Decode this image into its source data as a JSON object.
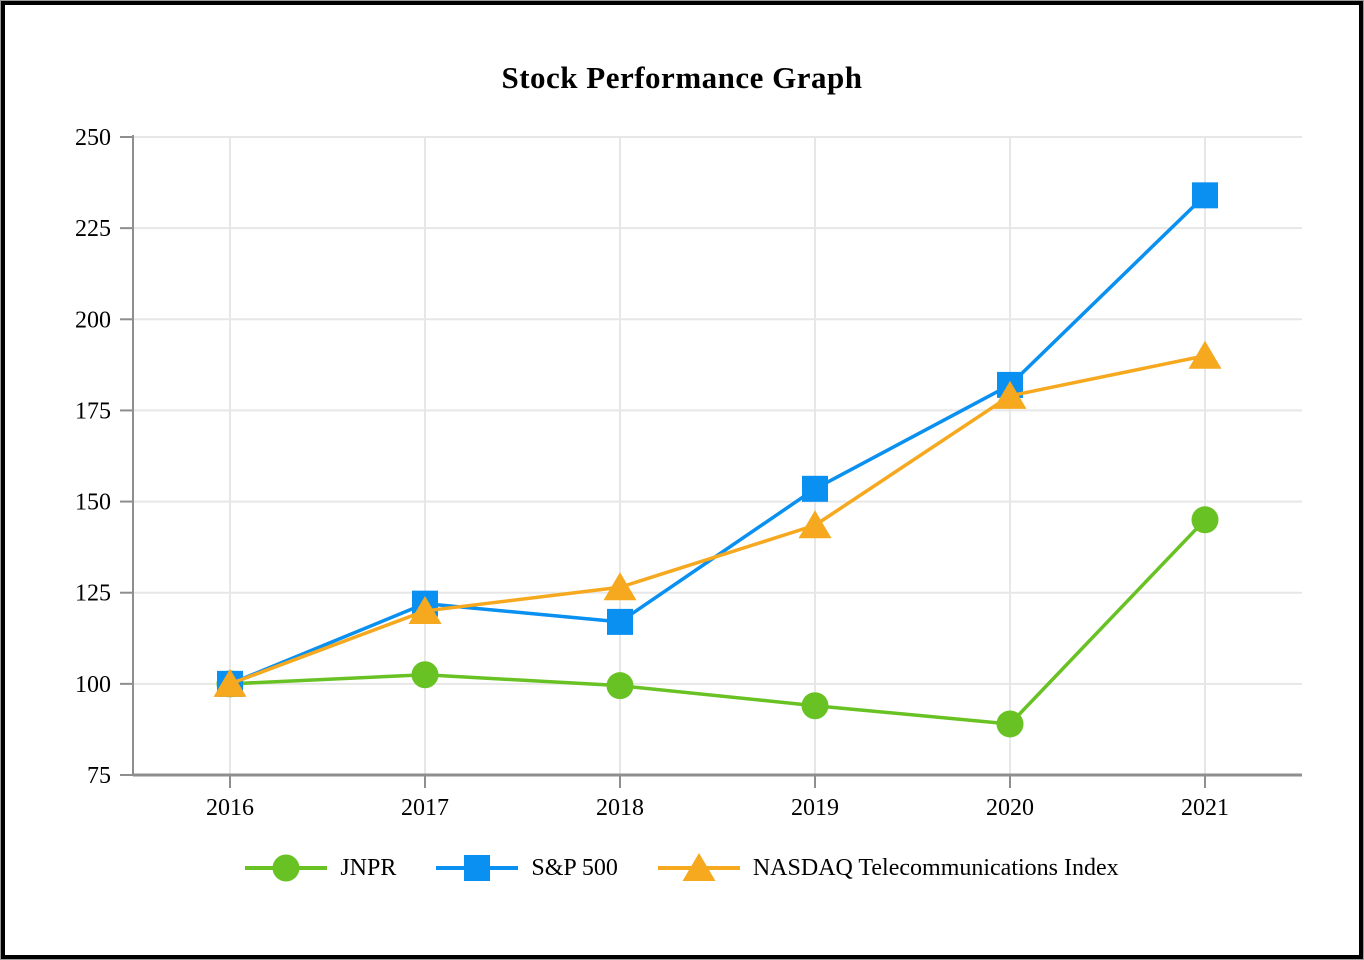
{
  "chart_data": {
    "type": "line",
    "title": "Stock Performance Graph",
    "x": [
      "2016",
      "2017",
      "2018",
      "2019",
      "2020",
      "2021"
    ],
    "series": [
      {
        "name": "JNPR",
        "marker": "circle",
        "color": "#69C223",
        "values": [
          100,
          102.5,
          99.5,
          94,
          89,
          145
        ]
      },
      {
        "name": "S&P 500",
        "marker": "square",
        "color": "#0990F0",
        "values": [
          100,
          122,
          117,
          153.5,
          182,
          234
        ]
      },
      {
        "name": "NASDAQ Telecommunications Index",
        "marker": "triangle",
        "color": "#F6A81F",
        "values": [
          100,
          120,
          126.5,
          143.5,
          179,
          190
        ]
      }
    ],
    "ylim": [
      75,
      250
    ],
    "yticks": [
      75,
      100,
      125,
      150,
      175,
      200,
      225,
      250
    ],
    "xlabel": "",
    "ylabel": "",
    "grid": true,
    "legend_position": "bottom"
  },
  "colors": {
    "axis": "#8E8E8E",
    "grid": "#E7E7E7",
    "background": "#FFFFFF",
    "border": "#000000"
  }
}
